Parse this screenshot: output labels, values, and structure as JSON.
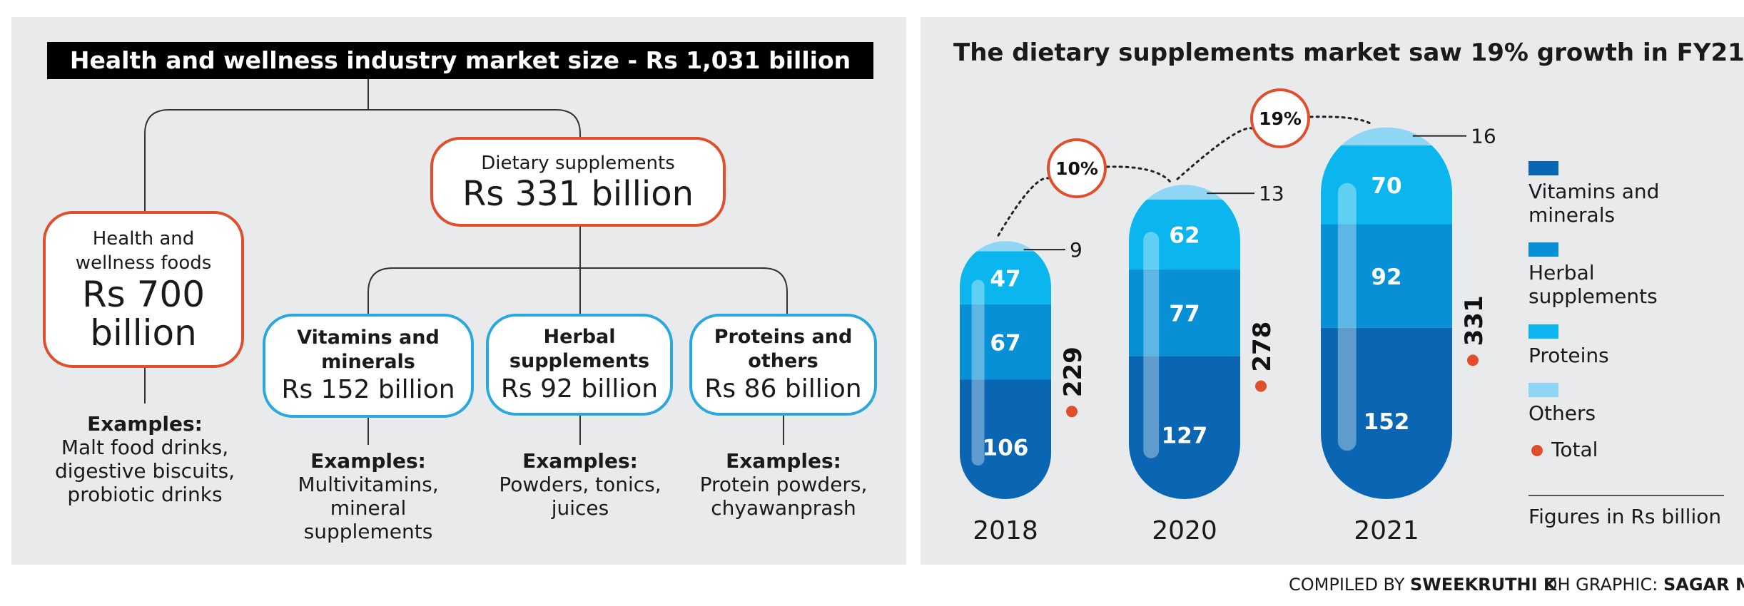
{
  "left": {
    "title": "Health and wellness industry market size - Rs 1,031 billion",
    "health_foods": {
      "label": "Health and wellness foods",
      "value": "Rs 700 billion"
    },
    "dietary": {
      "label": "Dietary supplements",
      "value": "Rs 331 billion"
    },
    "vitamins": {
      "label": "Vitamins and minerals",
      "value": "Rs 152 billion"
    },
    "herbal": {
      "label": "Herbal supplements",
      "value": "Rs 92 billion"
    },
    "proteins": {
      "label": "Proteins and others",
      "value": "Rs 86 billion"
    },
    "examples_heading": "Examples:",
    "examples": {
      "health_foods": "Malt food drinks, digestive biscuits, probiotic drinks",
      "vitamins": "Multivitamins, mineral supplements",
      "herbal": "Powders, tonics, juices",
      "proteins": "Protein powders, chyawanprash"
    }
  },
  "right": {
    "title": "The dietary supplements market saw 19% growth in FY21",
    "legend": {
      "vitamins": "Vitamins and minerals",
      "herbal": "Herbal supplements",
      "proteins": "Proteins",
      "others": "Others",
      "total": "Total"
    },
    "units_note": "Figures in Rs billion",
    "colors": {
      "vitamins": "#0a66b2",
      "herbal": "#0890d6",
      "proteins": "#0bb6ef",
      "others": "#8fd6f5",
      "total": "#e04e2b"
    }
  },
  "chart_data": {
    "type": "bar",
    "stacked": true,
    "categories": [
      "2018",
      "2020",
      "2021"
    ],
    "series": [
      {
        "name": "Vitamins and minerals",
        "values": [
          106,
          127,
          152
        ]
      },
      {
        "name": "Herbal supplements",
        "values": [
          67,
          77,
          92
        ]
      },
      {
        "name": "Proteins",
        "values": [
          47,
          62,
          70
        ]
      },
      {
        "name": "Others",
        "values": [
          9,
          13,
          16
        ]
      }
    ],
    "totals": [
      229,
      278,
      331
    ],
    "growth_labels": [
      "10%",
      "19%"
    ],
    "title": "The dietary supplements market saw 19% growth in FY21",
    "unit": "Figures in Rs billion"
  },
  "credits": {
    "compiled_label": "COMPILED BY",
    "compiled_name": "SWEEKRUTHI K",
    "graphic_label": "DH GRAPHIC:",
    "graphic_name": "SAGAR M S"
  }
}
